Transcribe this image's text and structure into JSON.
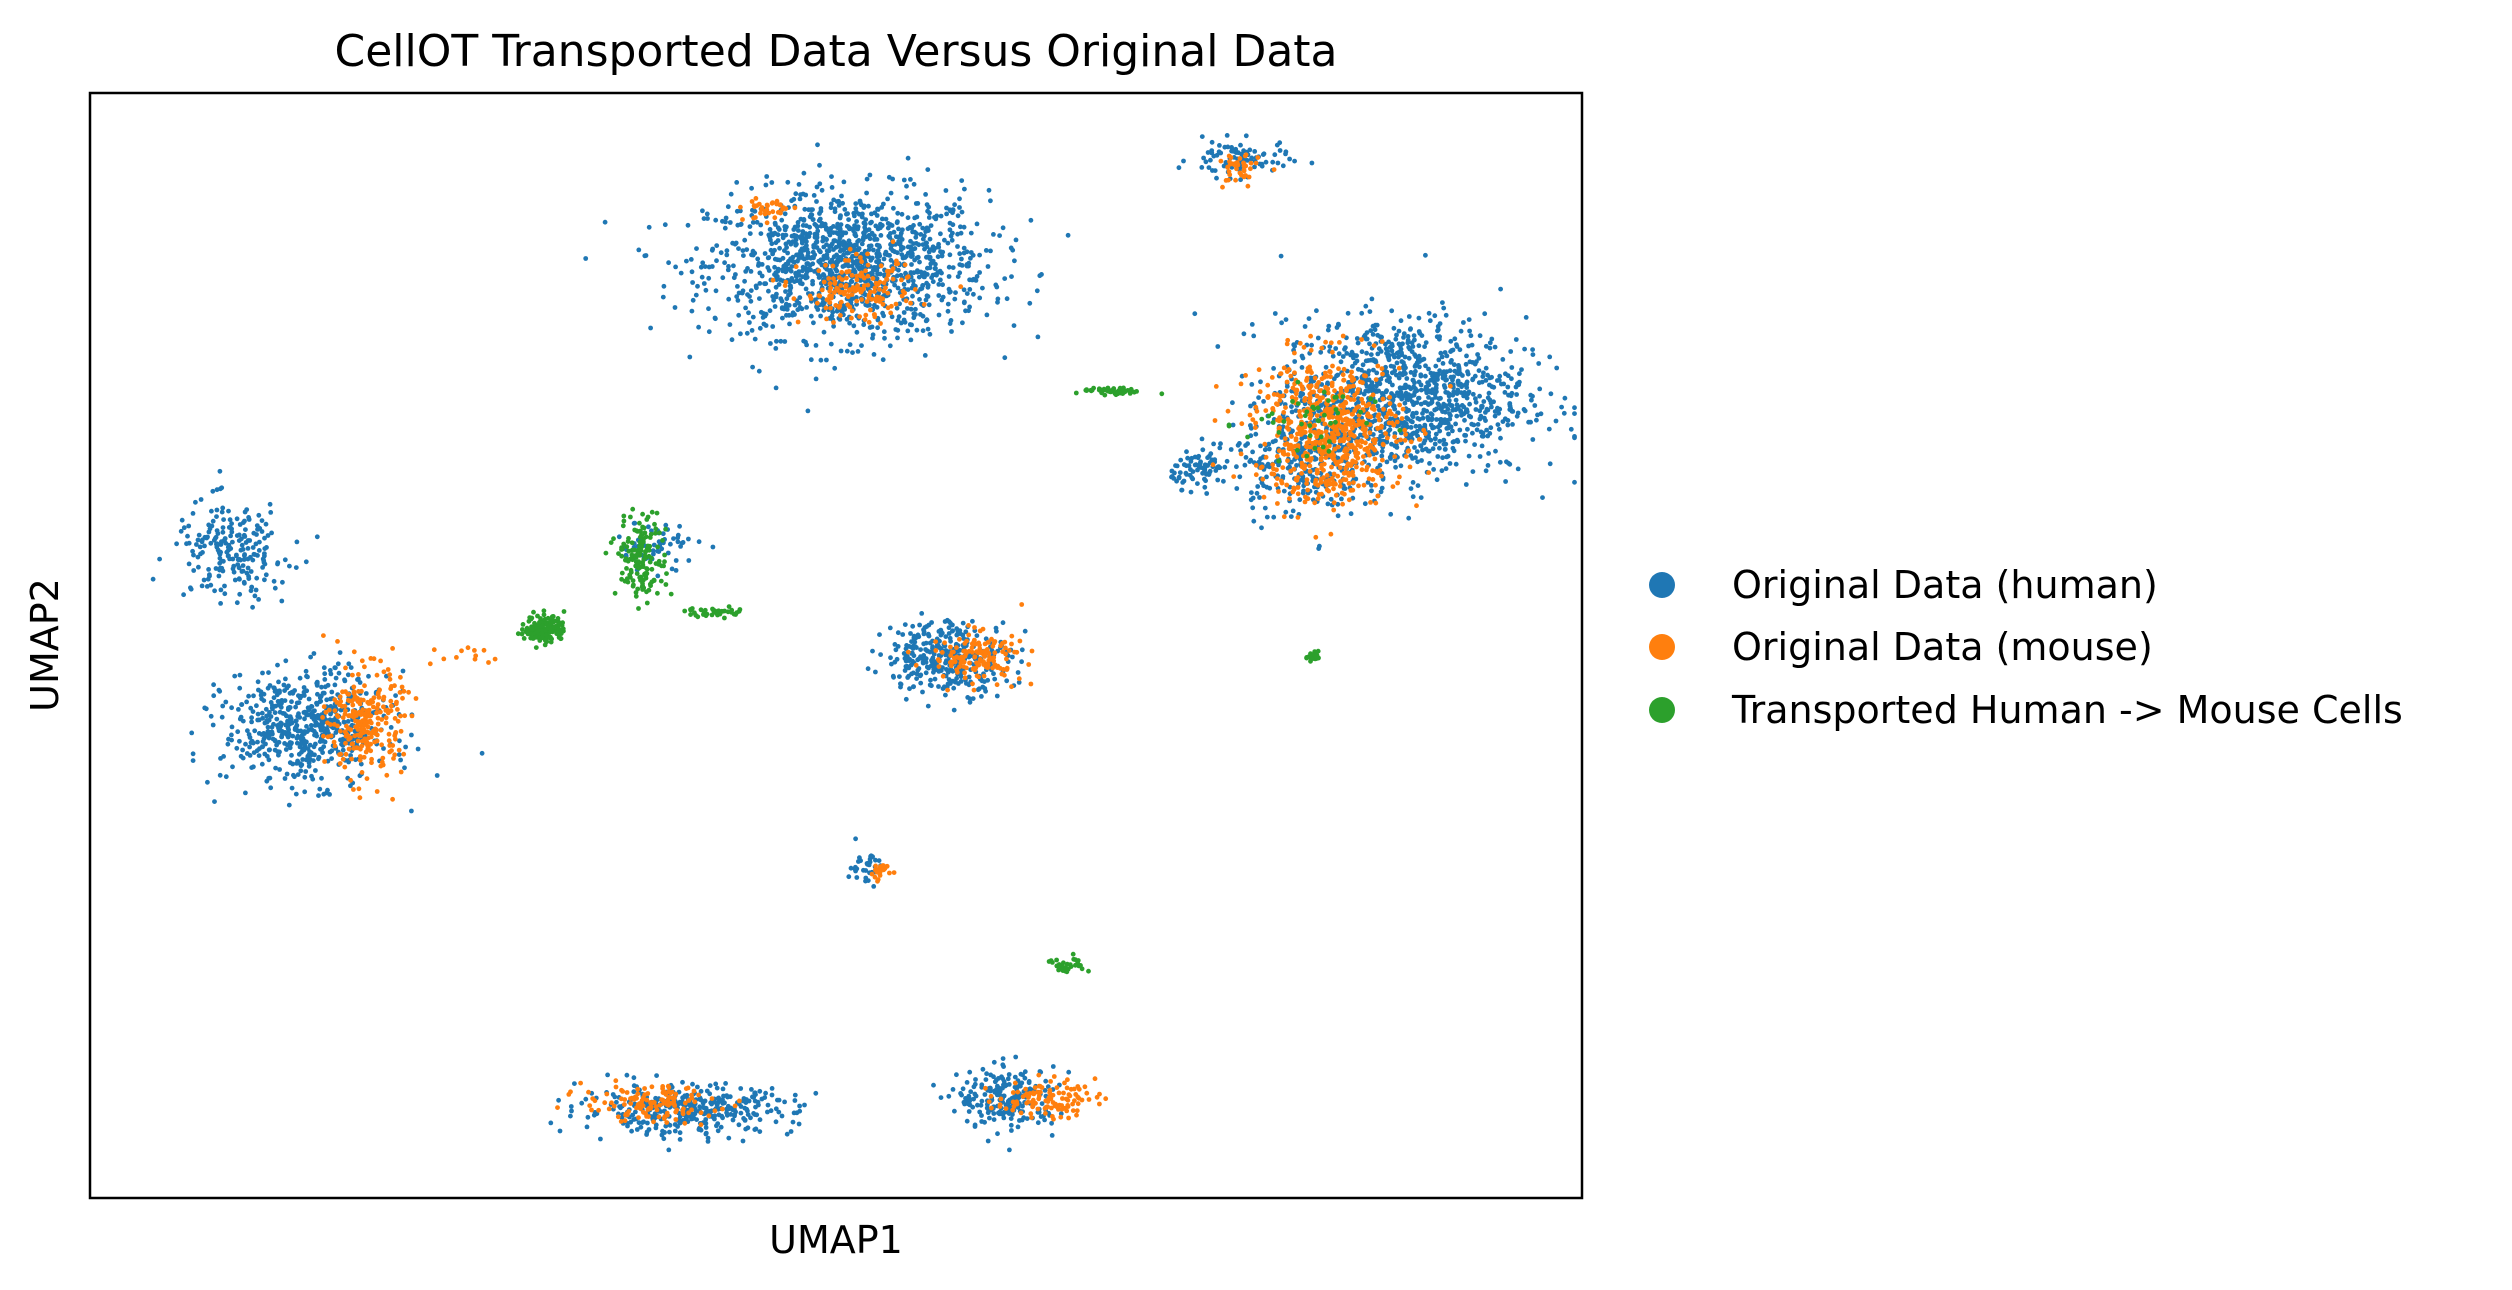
{
  "chart_data": {
    "type": "scatter",
    "title": "CellOT Transported Data Versus Original Data",
    "xlabel": "UMAP1",
    "ylabel": "UMAP2",
    "xlim": [
      0,
      100
    ],
    "ylim": [
      0,
      100
    ],
    "ticks": "none",
    "grid": false,
    "legend_position": "right",
    "series": [
      {
        "name": "Original Data (human)",
        "color": "#1f77b4",
        "clusters": [
          {
            "cx": 50.8,
            "cy": 84.5,
            "sx": 8.5,
            "sy": 6.0,
            "n": 1300
          },
          {
            "cx": 77.0,
            "cy": 94.0,
            "sx": 3.0,
            "sy": 1.5,
            "n": 90
          },
          {
            "cx": 88.0,
            "cy": 72.5,
            "sx": 7.5,
            "sy": 6.5,
            "n": 1100
          },
          {
            "cx": 81.0,
            "cy": 66.5,
            "sx": 4.0,
            "sy": 4.5,
            "n": 250
          },
          {
            "cx": 74.5,
            "cy": 66.0,
            "sx": 1.8,
            "sy": 1.5,
            "n": 80
          },
          {
            "cx": 9.5,
            "cy": 58.5,
            "sx": 3.5,
            "sy": 4.0,
            "n": 220
          },
          {
            "cx": 14.5,
            "cy": 42.5,
            "sx": 5.0,
            "sy": 4.5,
            "n": 600
          },
          {
            "cx": 57.5,
            "cy": 49.0,
            "sx": 3.8,
            "sy": 3.0,
            "n": 350
          },
          {
            "cx": 52.0,
            "cy": 30.0,
            "sx": 1.0,
            "sy": 1.5,
            "n": 35
          },
          {
            "cx": 40.0,
            "cy": 8.0,
            "sx": 6.5,
            "sy": 2.0,
            "n": 380
          },
          {
            "cx": 61.5,
            "cy": 9.0,
            "sx": 3.0,
            "sy": 2.5,
            "n": 220
          },
          {
            "cx": 38.0,
            "cy": 59.0,
            "sx": 2.5,
            "sy": 2.0,
            "n": 60
          }
        ]
      },
      {
        "name": "Original Data (mouse)",
        "color": "#ff7f0e",
        "clusters": [
          {
            "cx": 51.5,
            "cy": 82.0,
            "sx": 3.5,
            "sy": 2.5,
            "n": 160
          },
          {
            "cx": 45.5,
            "cy": 89.5,
            "sx": 1.5,
            "sy": 1.0,
            "n": 35
          },
          {
            "cx": 77.0,
            "cy": 93.0,
            "sx": 1.2,
            "sy": 1.5,
            "n": 40
          },
          {
            "cx": 83.0,
            "cy": 69.5,
            "sx": 4.5,
            "sy": 6.0,
            "n": 650
          },
          {
            "cx": 18.5,
            "cy": 43.0,
            "sx": 2.2,
            "sy": 4.5,
            "n": 260
          },
          {
            "cx": 59.5,
            "cy": 49.0,
            "sx": 2.8,
            "sy": 2.0,
            "n": 140
          },
          {
            "cx": 53.0,
            "cy": 29.5,
            "sx": 0.8,
            "sy": 0.8,
            "n": 25
          },
          {
            "cx": 37.5,
            "cy": 8.5,
            "sx": 4.0,
            "sy": 1.5,
            "n": 130
          },
          {
            "cx": 64.0,
            "cy": 9.0,
            "sx": 3.0,
            "sy": 1.5,
            "n": 110
          },
          {
            "cx": 25.0,
            "cy": 49.0,
            "sx": 2.0,
            "sy": 1.0,
            "n": 12
          }
        ]
      },
      {
        "name": "Transported Human -> Mouse Cells",
        "color": "#2ca02c",
        "clusters": [
          {
            "cx": 30.5,
            "cy": 51.5,
            "sx": 1.2,
            "sy": 1.2,
            "n": 150
          },
          {
            "cx": 37.0,
            "cy": 58.0,
            "sx": 1.5,
            "sy": 3.5,
            "n": 160
          },
          {
            "cx": 42.0,
            "cy": 53.0,
            "sx": 1.8,
            "sy": 0.4,
            "n": 40
          },
          {
            "cx": 68.5,
            "cy": 73.0,
            "sx": 2.0,
            "sy": 0.3,
            "n": 50
          },
          {
            "cx": 82.0,
            "cy": 49.0,
            "sx": 0.4,
            "sy": 0.4,
            "n": 25
          },
          {
            "cx": 65.5,
            "cy": 21.0,
            "sx": 1.2,
            "sy": 0.8,
            "n": 30
          },
          {
            "cx": 81.5,
            "cy": 70.0,
            "sx": 4.0,
            "sy": 3.5,
            "n": 45
          }
        ]
      }
    ]
  }
}
